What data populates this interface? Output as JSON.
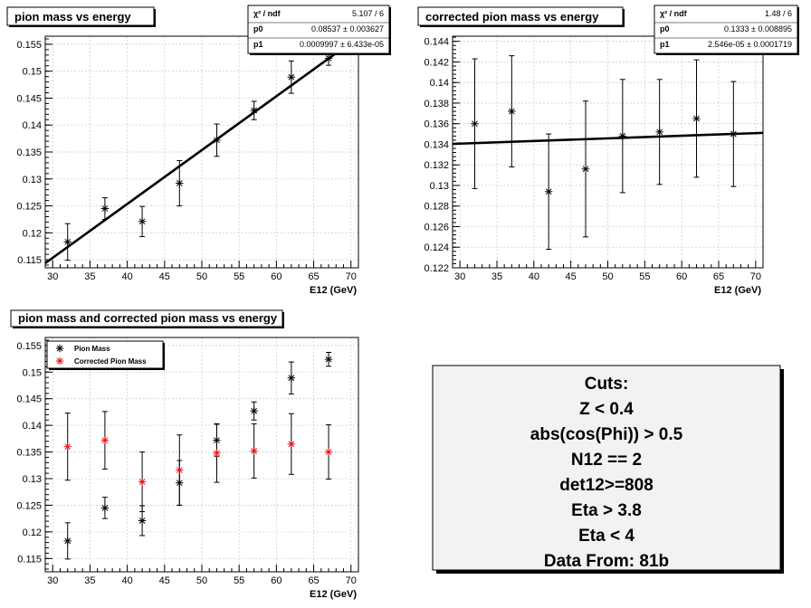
{
  "colors": {
    "black": "#000000",
    "red": "#ee1111",
    "box_bg": "#f2f2f2"
  },
  "chart_data": [
    {
      "type": "scatter",
      "title": "pion mass vs energy",
      "xlabel": "E12 (GeV)",
      "ylabel": "",
      "xlim": [
        29,
        71
      ],
      "ylim": [
        0.1135,
        0.1565
      ],
      "xticks": [
        "30",
        "35",
        "40",
        "45",
        "50",
        "55",
        "60",
        "65",
        "70"
      ],
      "yticks": [
        "0.115",
        "0.12",
        "0.125",
        "0.13",
        "0.135",
        "0.14",
        "0.145",
        "0.15",
        "0.155"
      ],
      "series": [
        {
          "x": [
            32,
            37,
            42,
            47,
            52,
            57,
            62,
            67
          ],
          "y": [
            0.1183,
            0.1245,
            0.1221,
            0.1292,
            0.1372,
            0.1427,
            0.1489,
            0.1524
          ],
          "err": [
            0.0034,
            0.002,
            0.0028,
            0.0042,
            0.003,
            0.0017,
            0.003,
            0.0013
          ]
        }
      ],
      "fit": {
        "p0": 0.08537,
        "p1": 0.0009997,
        "x": [
          29,
          71
        ]
      },
      "stats": {
        "rows": [
          {
            "label": "χ² / ndf",
            "value": "5.107 / 6"
          },
          {
            "label": "p0",
            "value": "0.08537 ± 0.003627"
          },
          {
            "label": "p1",
            "value": "0.0009997 ± 6.433e-05"
          }
        ]
      }
    },
    {
      "type": "scatter",
      "title": "corrected pion mass vs energy",
      "xlabel": "E12 (GeV)",
      "ylabel": "",
      "xlim": [
        29,
        71
      ],
      "ylim": [
        0.122,
        0.1445
      ],
      "xticks": [
        "30",
        "35",
        "40",
        "45",
        "50",
        "55",
        "60",
        "65",
        "70"
      ],
      "yticks": [
        "0.122",
        "0.124",
        "0.126",
        "0.128",
        "0.13",
        "0.132",
        "0.134",
        "0.136",
        "0.138",
        "0.14",
        "0.142",
        "0.144"
      ],
      "series": [
        {
          "x": [
            32,
            37,
            42,
            47,
            52,
            57,
            62,
            67
          ],
          "y": [
            0.136,
            0.1372,
            0.1294,
            0.1316,
            0.1348,
            0.1352,
            0.1365,
            0.135
          ],
          "err": [
            0.0063,
            0.0054,
            0.0056,
            0.0066,
            0.0055,
            0.0051,
            0.0057,
            0.0051
          ]
        }
      ],
      "fit": {
        "p0": 0.1333,
        "p1": 2.546e-05,
        "x": [
          29,
          71
        ]
      },
      "stats": {
        "rows": [
          {
            "label": "χ² / ndf",
            "value": "1.48 / 6"
          },
          {
            "label": "p0",
            "value": "0.1333 ± 0.008895"
          },
          {
            "label": "p1",
            "value": "2.546e-05 ± 0.0001719"
          }
        ]
      }
    },
    {
      "type": "scatter",
      "title": "pion mass and corrected pion mass vs energy",
      "xlabel": "E12 (GeV)",
      "ylabel": "",
      "xlim": [
        29,
        71
      ],
      "ylim": [
        0.1125,
        0.1565
      ],
      "xticks": [
        "30",
        "35",
        "40",
        "45",
        "50",
        "55",
        "60",
        "65",
        "70"
      ],
      "yticks": [
        "0.115",
        "0.12",
        "0.125",
        "0.13",
        "0.135",
        "0.14",
        "0.145",
        "0.15",
        "0.155"
      ],
      "legend": "top-left",
      "series": [
        {
          "name": "Pion Mass",
          "color": "#000000",
          "x": [
            32,
            37,
            42,
            47,
            52,
            57,
            62,
            67
          ],
          "y": [
            0.1183,
            0.1245,
            0.1221,
            0.1292,
            0.1372,
            0.1427,
            0.1489,
            0.1524
          ],
          "err": [
            0.0034,
            0.002,
            0.0028,
            0.0042,
            0.003,
            0.0017,
            0.003,
            0.0013
          ]
        },
        {
          "name": "Corrected Pion Mass",
          "color": "#ee1111",
          "x": [
            32,
            37,
            42,
            47,
            52,
            57,
            62,
            67
          ],
          "y": [
            0.136,
            0.1372,
            0.1294,
            0.1316,
            0.1348,
            0.1352,
            0.1365,
            0.135
          ],
          "err": [
            0.0063,
            0.0054,
            0.0056,
            0.0066,
            0.0055,
            0.0051,
            0.0057,
            0.0051
          ]
        }
      ]
    }
  ],
  "cuts": {
    "lines": [
      "Cuts:",
      "Z < 0.4",
      "abs(cos(Phi)) > 0.5",
      "N12 == 2",
      "det12>=808",
      "Eta > 3.8",
      "Eta < 4",
      "Data From: 81b"
    ]
  }
}
